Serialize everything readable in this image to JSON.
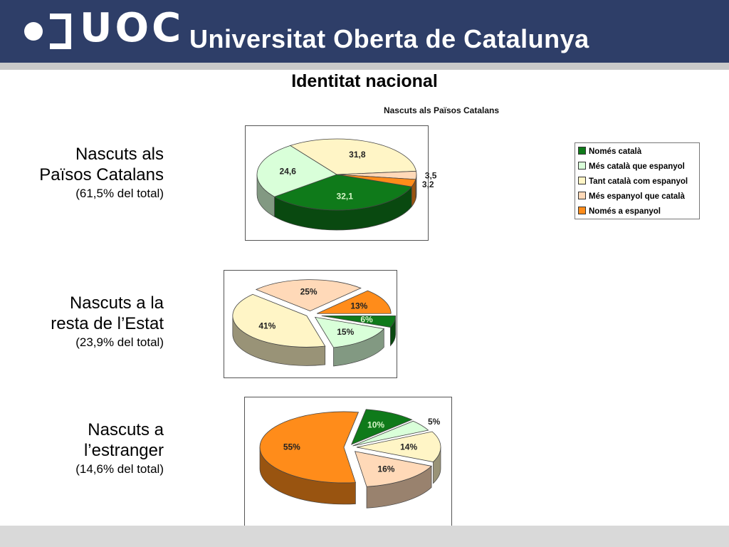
{
  "header": {
    "logo_text": "UOC",
    "university_name": "Universitat Oberta de Catalunya"
  },
  "slide_title": "Identitat nacional",
  "groups": [
    {
      "line1": "Nascuts als",
      "line2": "Països Catalans",
      "share": "(61,5% del total)"
    },
    {
      "line1": "Nascuts a la",
      "line2": "resta de l’Estat",
      "share": "(23,9% del total)"
    },
    {
      "line1": "Nascuts a",
      "line2": "l’estranger",
      "share": "(14,6% del total)"
    }
  ],
  "legend": {
    "items": [
      {
        "label": "Només català",
        "color": "#0f7a1a"
      },
      {
        "label": "Més català que espanyol",
        "color": "#d9ffd9"
      },
      {
        "label": "Tant català com espanyol",
        "color": "#fff5c6"
      },
      {
        "label": "Més espanyol que català",
        "color": "#ffd9b8"
      },
      {
        "label": "Només a espanyol",
        "color": "#ff8c1a"
      }
    ]
  },
  "chart_data": [
    {
      "type": "pie",
      "title": "Nascuts als Països Catalans",
      "categories": [
        "Només català",
        "Més català que espanyol",
        "Tant català com espanyol",
        "Més espanyol que català",
        "Només a espanyol"
      ],
      "values": [
        32.1,
        24.6,
        31.8,
        3.5,
        3.2
      ],
      "data_labels": [
        "32,1",
        "24,6",
        "31,8",
        "3,5",
        "3,2"
      ],
      "legend_position": "right"
    },
    {
      "type": "pie",
      "title": "",
      "categories": [
        "Només català",
        "Més català que espanyol",
        "Tant català com espanyol",
        "Més espanyol que català",
        "Només a espanyol"
      ],
      "values": [
        6,
        15,
        41,
        25,
        13
      ],
      "data_labels": [
        "6%",
        "15%",
        "41%",
        "25%",
        "13%"
      ]
    },
    {
      "type": "pie",
      "title": "",
      "categories": [
        "Només català",
        "Més català que espanyol",
        "Tant català com espanyol",
        "Més espanyol que català",
        "Només a espanyol"
      ],
      "values": [
        10,
        5,
        14,
        16,
        55
      ],
      "data_labels": [
        "10%",
        "5%",
        "14%",
        "16%",
        "55%"
      ]
    }
  ]
}
